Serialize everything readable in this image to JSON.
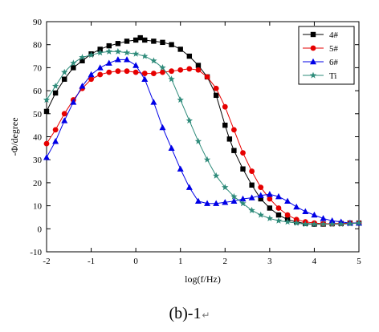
{
  "caption": "(b)-1",
  "caption_mark": "↵",
  "chart_data": {
    "type": "line",
    "xlabel": "log(f/Hz)",
    "ylabel": "-Φ/degree",
    "xlim": [
      -2,
      5
    ],
    "ylim": [
      -10,
      90
    ],
    "xticks": [
      -2,
      -1,
      0,
      1,
      2,
      3,
      4,
      5
    ],
    "yticks": [
      -10,
      0,
      10,
      20,
      30,
      40,
      50,
      60,
      70,
      80,
      90
    ],
    "grid": false,
    "legend_position": "top-right",
    "series": [
      {
        "name": "4#",
        "color": "#000000",
        "marker": "square",
        "x": [
          -2,
          -1.8,
          -1.6,
          -1.4,
          -1.2,
          -1,
          -0.8,
          -0.6,
          -0.4,
          -0.2,
          0,
          0.1,
          0.2,
          0.4,
          0.6,
          0.8,
          1,
          1.2,
          1.4,
          1.6,
          1.8,
          2,
          2.1,
          2.2,
          2.4,
          2.6,
          2.8,
          3,
          3.2,
          3.4,
          3.6,
          3.8,
          4,
          4.2,
          4.4,
          4.6,
          4.8,
          5
        ],
        "y": [
          51,
          59,
          65,
          70,
          73,
          76,
          78,
          79.5,
          80.5,
          81.5,
          82,
          83,
          82,
          81.5,
          81,
          80,
          78,
          75,
          71,
          66,
          58,
          45,
          39,
          34,
          26,
          19,
          13,
          9,
          6,
          4,
          3,
          2.3,
          2,
          2,
          2.2,
          2.3,
          2.5,
          2.5
        ]
      },
      {
        "name": "5#",
        "color": "#e60000",
        "marker": "circle",
        "x": [
          -2,
          -1.8,
          -1.6,
          -1.4,
          -1.2,
          -1,
          -0.8,
          -0.6,
          -0.4,
          -0.2,
          0,
          0.2,
          0.4,
          0.6,
          0.8,
          1,
          1.2,
          1.4,
          1.6,
          1.8,
          2,
          2.2,
          2.4,
          2.6,
          2.8,
          3,
          3.2,
          3.4,
          3.6,
          3.8,
          4,
          4.2,
          4.4,
          4.6,
          4.8,
          5
        ],
        "y": [
          37,
          43,
          50,
          56,
          61,
          65,
          67,
          68,
          68.5,
          68.5,
          68,
          67.5,
          67.5,
          68,
          68.5,
          69,
          69.5,
          69,
          66,
          61,
          53,
          43,
          33,
          25,
          18,
          13,
          9,
          6,
          4,
          3,
          2.5,
          2.2,
          2.2,
          2.3,
          2.5,
          2.5
        ]
      },
      {
        "name": "6#",
        "color": "#0000e6",
        "marker": "triangle",
        "x": [
          -2,
          -1.8,
          -1.6,
          -1.4,
          -1.2,
          -1,
          -0.8,
          -0.6,
          -0.4,
          -0.2,
          0,
          0.2,
          0.4,
          0.6,
          0.8,
          1,
          1.2,
          1.4,
          1.6,
          1.8,
          2,
          2.2,
          2.4,
          2.6,
          2.8,
          3,
          3.2,
          3.4,
          3.6,
          3.8,
          4,
          4.2,
          4.4,
          4.6,
          4.8,
          5
        ],
        "y": [
          31,
          38,
          47,
          55,
          62,
          67,
          70,
          72,
          73.5,
          73.5,
          71,
          65,
          55,
          44,
          35,
          26,
          18,
          12,
          11,
          11,
          11.5,
          12,
          13,
          13.5,
          14.5,
          15,
          14,
          12,
          9.5,
          7.5,
          6,
          4.5,
          3.5,
          3,
          2.5,
          2.5
        ]
      },
      {
        "name": "Ti",
        "color": "#2e8b7a",
        "marker": "star",
        "x": [
          -2,
          -1.8,
          -1.6,
          -1.4,
          -1.2,
          -1,
          -0.8,
          -0.6,
          -0.4,
          -0.2,
          0,
          0.2,
          0.4,
          0.6,
          0.8,
          1,
          1.2,
          1.4,
          1.6,
          1.8,
          2,
          2.2,
          2.4,
          2.6,
          2.8,
          3,
          3.2,
          3.4,
          3.6,
          3.8,
          4,
          4.2,
          4.4,
          4.6,
          4.8,
          5
        ],
        "y": [
          56,
          62,
          68,
          72,
          74.5,
          75.5,
          76.5,
          77,
          77,
          76.5,
          76,
          75,
          73,
          70,
          65,
          56,
          47,
          38,
          30,
          23,
          18,
          14,
          11,
          8,
          6,
          4.5,
          3.5,
          3,
          2.5,
          2,
          2,
          2,
          2,
          2,
          2.2,
          2.5
        ]
      }
    ]
  }
}
